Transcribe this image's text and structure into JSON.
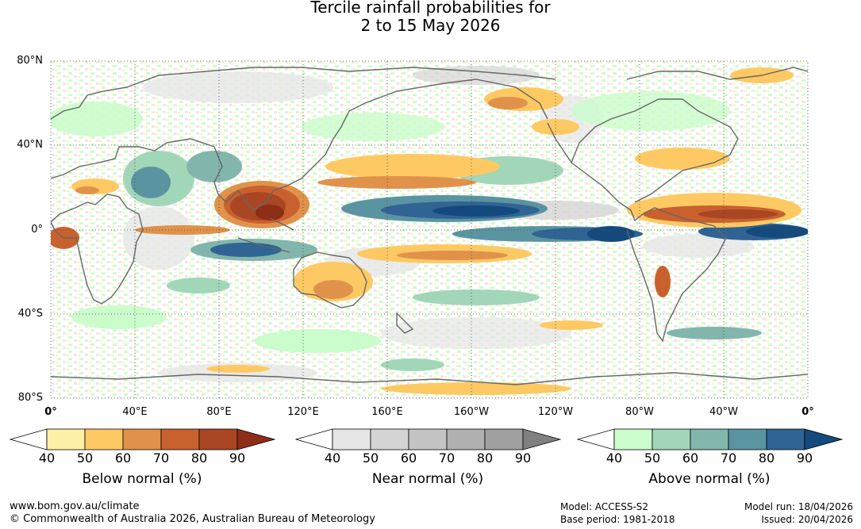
{
  "title": {
    "line1": "Tercile rainfall probabilities for",
    "line2": "2 to 15 May 2026"
  },
  "axes": {
    "lat_ticks": [
      {
        "value": 80,
        "label": "80°N"
      },
      {
        "value": 40,
        "label": "40°N"
      },
      {
        "value": 0,
        "label": "0°"
      },
      {
        "value": -40,
        "label": "40°S"
      },
      {
        "value": -80,
        "label": "80°S"
      }
    ],
    "lon_ticks": [
      {
        "value": 0,
        "label": "0°",
        "bold": true
      },
      {
        "value": 40,
        "label": "40°E"
      },
      {
        "value": 80,
        "label": "80°E"
      },
      {
        "value": 120,
        "label": "120°E"
      },
      {
        "value": 160,
        "label": "160°E"
      },
      {
        "value": 200,
        "label": "160°W"
      },
      {
        "value": 240,
        "label": "120°W"
      },
      {
        "value": 280,
        "label": "80°W"
      },
      {
        "value": 320,
        "label": "40°W"
      },
      {
        "value": 360,
        "label": "0°",
        "bold": true
      }
    ],
    "lon_range": [
      0,
      360
    ],
    "lat_range": [
      -80,
      80
    ],
    "grid": true
  },
  "legends": [
    {
      "title": "Below normal (%)",
      "ticks": [
        "40",
        "50",
        "60",
        "70",
        "80",
        "90"
      ],
      "colors": [
        "#fff0a8",
        "#fec963",
        "#e0924a",
        "#c9612f",
        "#a94624",
        "#8e2e16"
      ]
    },
    {
      "title": "Near normal (%)",
      "ticks": [
        "40",
        "50",
        "60",
        "70",
        "80",
        "90"
      ],
      "colors": [
        "#e6e6e6",
        "#d4d4d4",
        "#c4c4c4",
        "#b0b0b0",
        "#a0a0a0",
        "#808080"
      ]
    },
    {
      "title": "Above normal (%)",
      "ticks": [
        "40",
        "50",
        "60",
        "70",
        "80",
        "90"
      ],
      "colors": [
        "#cbfccb",
        "#a2d6b8",
        "#82b6ad",
        "#5b94a1",
        "#2f6494",
        "#144a7e"
      ]
    }
  ],
  "footer": {
    "website": "www.bom.gov.au/climate",
    "copyright": "© Commonwealth of Australia 2026, Australian Bureau of Meteorology",
    "model": "Model: ACCESS-S2",
    "base_period": "Base period: 1981-2018",
    "model_run": "Model run: 18/04/2026",
    "issued": "Issued: 20/04/2026"
  }
}
